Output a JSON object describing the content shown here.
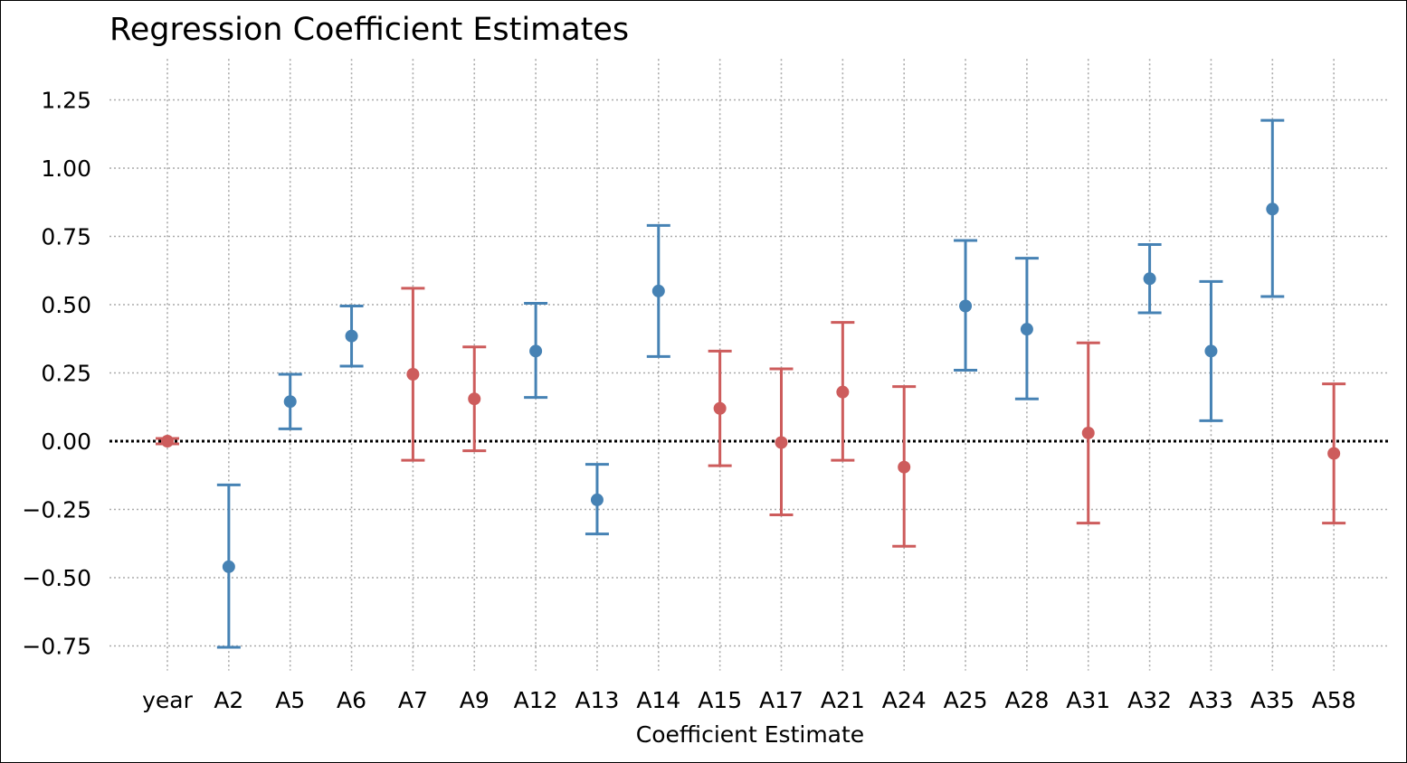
{
  "chart_data": {
    "type": "scatter",
    "title": "Regression Coefficient Estimates",
    "xlabel": "Coefficient Estimate",
    "ylabel": "",
    "categories": [
      "year",
      "A2",
      "A5",
      "A6",
      "A7",
      "A9",
      "A12",
      "A13",
      "A14",
      "A15",
      "A17",
      "A21",
      "A24",
      "A25",
      "A28",
      "A31",
      "A32",
      "A33",
      "A35",
      "A58"
    ],
    "estimates": [
      0.0,
      -0.46,
      0.145,
      0.385,
      0.245,
      0.155,
      0.33,
      -0.215,
      0.55,
      0.12,
      -0.005,
      0.18,
      -0.095,
      0.495,
      0.41,
      0.03,
      0.595,
      0.33,
      0.85,
      -0.045
    ],
    "ci_lower": [
      -0.01,
      -0.755,
      0.045,
      0.275,
      -0.07,
      -0.035,
      0.16,
      -0.34,
      0.31,
      -0.09,
      -0.27,
      -0.07,
      -0.385,
      0.26,
      0.155,
      -0.3,
      0.47,
      0.075,
      0.53,
      -0.3
    ],
    "ci_upper": [
      0.01,
      -0.16,
      0.245,
      0.495,
      0.56,
      0.345,
      0.505,
      -0.085,
      0.79,
      0.33,
      0.265,
      0.435,
      0.2,
      0.735,
      0.67,
      0.36,
      0.72,
      0.585,
      1.175,
      0.21
    ],
    "significant": [
      false,
      true,
      true,
      true,
      false,
      false,
      true,
      true,
      true,
      false,
      false,
      false,
      false,
      true,
      true,
      false,
      true,
      true,
      true,
      false
    ],
    "yticks": [
      1.25,
      1.0,
      0.75,
      0.5,
      0.25,
      0.0,
      -0.25,
      -0.5,
      -0.75
    ],
    "ytick_labels": [
      "1.25",
      "1.00",
      "0.75",
      "0.50",
      "0.25",
      "0.00",
      "−0.25",
      "−0.50",
      "−0.75"
    ],
    "ylim": [
      -0.84,
      1.4
    ],
    "zero_line": 0,
    "grid": true,
    "colors": {
      "significant": "#4682b4",
      "not_significant": "#cd5c5c",
      "grid": "#aaaaaa",
      "zero_line": "#000000"
    }
  }
}
